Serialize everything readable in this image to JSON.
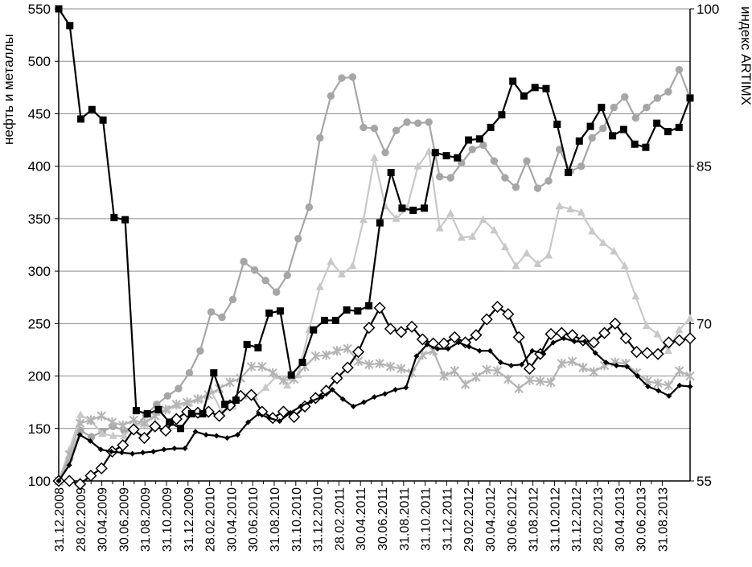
{
  "chart_data": {
    "type": "line",
    "ylabel_left": "нефть и металлы",
    "ylabel_right": "индекс ARTIMX",
    "ylim_left": [
      100,
      550
    ],
    "ylim_right": [
      55,
      100
    ],
    "yticks_left": [
      "100",
      "150",
      "200",
      "250",
      "300",
      "350",
      "400",
      "450",
      "500",
      "550"
    ],
    "yticks_right": [
      "55",
      "70",
      "85",
      "100"
    ],
    "grid": true,
    "xtick_labels": [
      "31.12.2008",
      "28.02.2009",
      "30.04.2009",
      "30.06.2009",
      "31.08.2009",
      "31.10.2009",
      "31.12.2009",
      "28.02.2010",
      "30.04.2010",
      "30.06.2010",
      "31.08.2010",
      "31.10.2010",
      "31.12.2010",
      "28.02.2011",
      "30.04.2011",
      "30.06.2011",
      "31.08.2011",
      "31.10.2011",
      "31.12.2011",
      "29.02.2012",
      "30.04.2012",
      "30.06.2012",
      "31.08.2012",
      "31.10.2012",
      "31.12.2012",
      "28.02.2013",
      "30.04.2013",
      "30.06.2013",
      "31.08.2013"
    ],
    "series": [
      {
        "marker": "circle",
        "color": "#a6a6a6",
        "axis": "left",
        "values": [
          100,
          121,
          148,
          142,
          147,
          152,
          148,
          150,
          163,
          173,
          181,
          188,
          203,
          224,
          261,
          256,
          273,
          309,
          301,
          291,
          280,
          296,
          331,
          361,
          427,
          467,
          484,
          485,
          437,
          436,
          413,
          434,
          442,
          441,
          442,
          390,
          389,
          403,
          416,
          420,
          405,
          389,
          380,
          405,
          379,
          386,
          416,
          395,
          400,
          427,
          436,
          456,
          466,
          446,
          456,
          465,
          471,
          492,
          465
        ]
      },
      {
        "marker": "triangle",
        "color": "#c8c8c8",
        "axis": "left",
        "values": [
          100,
          130,
          163,
          157,
          145,
          143,
          143,
          153,
          155,
          165,
          168,
          172,
          174,
          178,
          186,
          165,
          171,
          181,
          180,
          189,
          200,
          191,
          201,
          244,
          285,
          309,
          297,
          305,
          349,
          408,
          362,
          350,
          360,
          400,
          414,
          341,
          355,
          332,
          333,
          349,
          339,
          323,
          305,
          317,
          307,
          315,
          362,
          359,
          356,
          338,
          327,
          319,
          305,
          276,
          248,
          240,
          224,
          244,
          255
        ]
      },
      {
        "marker": "star",
        "color": "#b4b4b4",
        "axis": "left",
        "values": [
          100,
          125,
          155,
          158,
          162,
          156,
          153,
          158,
          155,
          162,
          168,
          173,
          175,
          178,
          182,
          188,
          194,
          198,
          209,
          209,
          203,
          196,
          197,
          209,
          219,
          220,
          224,
          226,
          214,
          211,
          212,
          209,
          207,
          203,
          220,
          224,
          200,
          205,
          192,
          199,
          206,
          205,
          197,
          188,
          196,
          195,
          194,
          212,
          214,
          208,
          204,
          210,
          213,
          212,
          203,
          195,
          193,
          191,
          205,
          200
        ]
      },
      {
        "marker": "diamond-open",
        "color": "#000000",
        "axis": "left",
        "values": [
          100,
          100,
          97,
          105,
          112,
          128,
          134,
          149,
          141,
          152,
          148,
          159,
          166,
          165,
          166,
          162,
          172,
          181,
          182,
          166,
          160,
          166,
          161,
          171,
          179,
          186,
          198,
          208,
          223,
          246,
          265,
          245,
          242,
          247,
          235,
          231,
          231,
          237,
          232,
          239,
          254,
          266,
          259,
          237,
          207,
          221,
          240,
          241,
          239,
          234,
          232,
          241,
          250,
          236,
          223,
          222,
          221,
          232,
          234,
          236
        ]
      },
      {
        "marker": "diamond-small",
        "color": "#000000",
        "axis": "left",
        "values": [
          100,
          115,
          144,
          138,
          130,
          128,
          127,
          126,
          127,
          128,
          130,
          131,
          131,
          147,
          144,
          143,
          141,
          144,
          156,
          164,
          160,
          157,
          165,
          171,
          176,
          180,
          187,
          178,
          171,
          175,
          180,
          183,
          187,
          189,
          219,
          230,
          226,
          226,
          232,
          228,
          224,
          224,
          213,
          210,
          211,
          224,
          222,
          232,
          236,
          233,
          233,
          222,
          213,
          210,
          209,
          200,
          190,
          186,
          181,
          191,
          190
        ]
      },
      {
        "marker": "square",
        "color": "#000000",
        "axis": "right",
        "values": [
          100,
          98.4,
          89.5,
          90.4,
          89.4,
          80.1,
          79.9,
          61.7,
          61.4,
          61.8,
          60.6,
          60.0,
          61.4,
          61.4,
          65.3,
          62.3,
          62.7,
          68.0,
          67.7,
          71.0,
          71.2,
          65.1,
          66.3,
          69.4,
          70.3,
          70.3,
          71.3,
          71.2,
          71.7,
          79.6,
          84.4,
          81.0,
          80.8,
          81.0,
          86.3,
          86.0,
          85.8,
          87.5,
          87.6,
          88.7,
          89.9,
          93.1,
          91.7,
          92.5,
          92.4,
          89.0,
          84.4,
          87.4,
          88.8,
          90.6,
          87.9,
          88.5,
          87.1,
          86.8,
          89.1,
          88.3,
          88.7,
          91.5
        ]
      }
    ]
  }
}
